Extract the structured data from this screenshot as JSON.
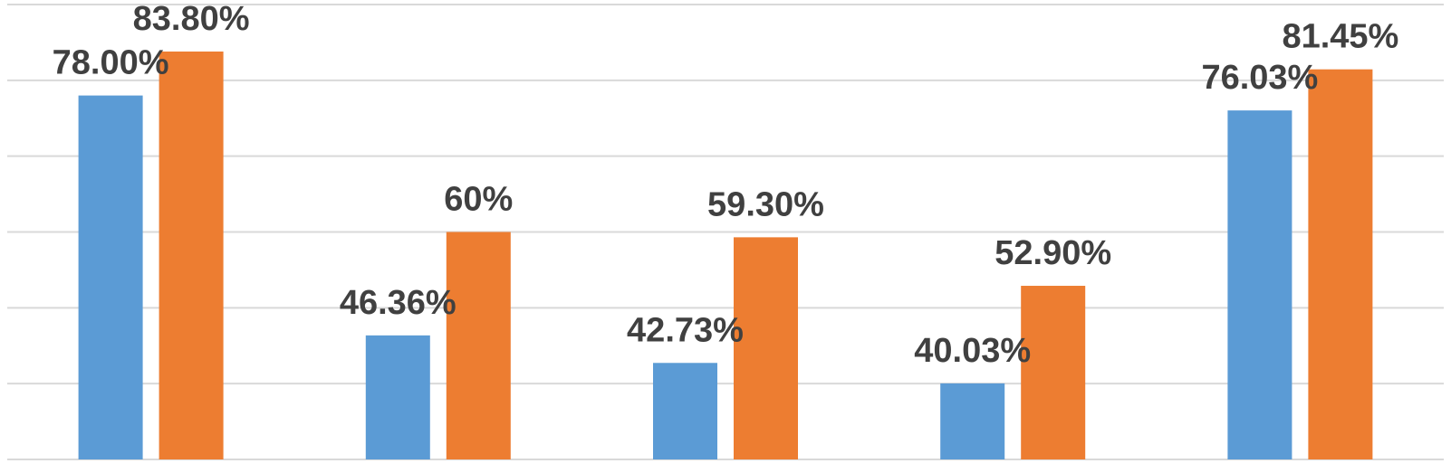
{
  "chart_data": {
    "type": "bar",
    "categories": [
      "",
      "",
      "",
      "",
      ""
    ],
    "series": [
      {
        "values": [
          78.0,
          46.36,
          42.73,
          40.03,
          76.03
        ],
        "labels": [
          "78.00%",
          "46.36%",
          "42.73%",
          "40.03%",
          "76.03%"
        ],
        "color": "#5b9bd5"
      },
      {
        "values": [
          83.8,
          60,
          59.3,
          52.9,
          81.45
        ],
        "labels": [
          "83.80%",
          "60%",
          "59.30%",
          "52.90%",
          "81.45%"
        ],
        "color": "#ed7d31"
      }
    ],
    "ylim": [
      30,
      90
    ],
    "gridlines": true,
    "legend": "none"
  }
}
